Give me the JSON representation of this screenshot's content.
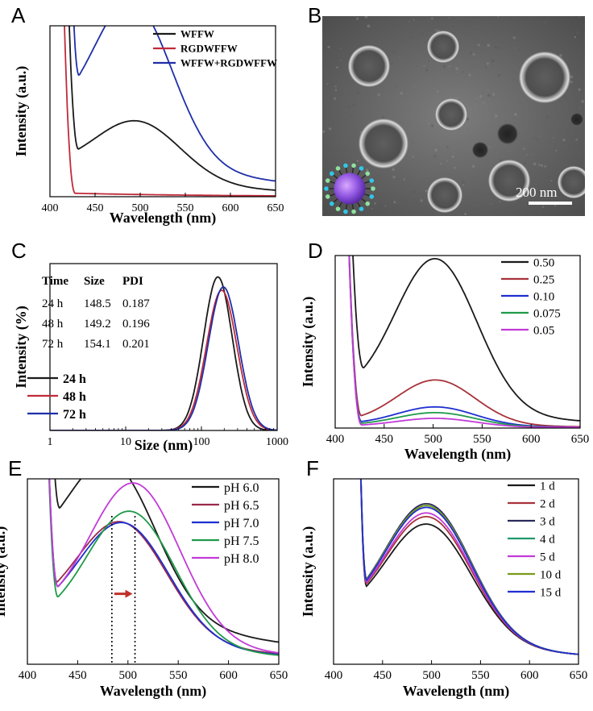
{
  "panel_labels": {
    "A": "A",
    "B": "B",
    "C": "C",
    "D": "D",
    "E": "E",
    "F": "F"
  },
  "sem": {
    "scale_bar_label": "200 nm"
  },
  "dls_table": {
    "headers": [
      "Time",
      "Size",
      "PDI"
    ],
    "rows": [
      [
        "24 h",
        "148.5",
        "0.187"
      ],
      [
        "48 h",
        "149.2",
        "0.196"
      ],
      [
        "72 h",
        "154.1",
        "0.201"
      ]
    ]
  },
  "chart_data": [
    {
      "id": "A",
      "type": "line",
      "ylabel": "Intensity (a.u.)",
      "xlabel": "Wavelength (nm)",
      "xlim": [
        400,
        650
      ],
      "xticks": [
        400,
        450,
        500,
        550,
        600,
        650
      ],
      "ylim": [
        0,
        1
      ],
      "yticks": false,
      "legend": "top-right",
      "series": [
        {
          "name": "WFFW",
          "color": "#1a1a1a",
          "baseline": 0.14,
          "peak_x": 497,
          "peak_y": 0.35,
          "sigma": 48,
          "dip_x": 432,
          "onset_x": 418
        },
        {
          "name": "RGDWFFW",
          "color": "#c02a3a",
          "baseline": 0.02,
          "peak_x": 500,
          "peak_y": 0.0,
          "sigma": 40,
          "dip_x": 428,
          "onset_x": 414
        },
        {
          "name": "WFFW+RGDWFFW",
          "color": "#1f2fa8",
          "baseline": 0.35,
          "peak_x": 492,
          "peak_y": 0.9,
          "sigma": 44,
          "dip_x": 433,
          "onset_x": 421
        }
      ]
    },
    {
      "id": "C",
      "type": "line",
      "xscale": "log",
      "ylabel": "Intensity (%)",
      "xlabel": "Size (nm)",
      "xlim": [
        1,
        1000
      ],
      "xticks": [
        1,
        10,
        100,
        1000
      ],
      "ylim": [
        0,
        1
      ],
      "yticks": false,
      "legend": "left",
      "series": [
        {
          "name": "24 h",
          "color": "#1a1a1a",
          "center": 165,
          "peak_y": 0.92,
          "width": 0.19
        },
        {
          "name": "48 h",
          "color": "#c02a3a",
          "center": 185,
          "peak_y": 0.84,
          "width": 0.2
        },
        {
          "name": "72 h",
          "color": "#1f2fa8",
          "center": 195,
          "peak_y": 0.86,
          "width": 0.2
        }
      ]
    },
    {
      "id": "D",
      "type": "line",
      "ylabel": "Intensity  (a.u.)",
      "xlabel": "Wavelength  (nm)",
      "xlim": [
        400,
        650
      ],
      "xticks": [
        400,
        450,
        500,
        550,
        600,
        650
      ],
      "ylim": [
        0,
        1
      ],
      "yticks": false,
      "legend": "top-right",
      "series": [
        {
          "name": "0.50",
          "color": "#1a1a1a",
          "baseline": 0.16,
          "peak_x": 503,
          "peak_y": 0.88,
          "sigma": 42,
          "dip_x": 430,
          "onset_x": 414
        },
        {
          "name": "0.25",
          "color": "#a8323a",
          "baseline": 0.03,
          "peak_x": 503,
          "peak_y": 0.26,
          "sigma": 40,
          "dip_x": 427,
          "onset_x": 412
        },
        {
          "name": "0.10",
          "color": "#1f2fd0",
          "baseline": 0.02,
          "peak_x": 503,
          "peak_y": 0.11,
          "sigma": 40,
          "dip_x": 427,
          "onset_x": 412
        },
        {
          "name": "0.075",
          "color": "#1f9a4a",
          "baseline": 0.015,
          "peak_x": 503,
          "peak_y": 0.08,
          "sigma": 40,
          "dip_x": 427,
          "onset_x": 412
        },
        {
          "name": "0.05",
          "color": "#c23ad8",
          "baseline": 0.01,
          "peak_x": 503,
          "peak_y": 0.05,
          "sigma": 40,
          "dip_x": 427,
          "onset_x": 412
        }
      ]
    },
    {
      "id": "E",
      "type": "line",
      "ylabel": "Intensity  (a.u.)",
      "xlabel": "Wavelength  (nm)",
      "xlim": [
        400,
        650
      ],
      "xticks": [
        400,
        450,
        500,
        550,
        600,
        650
      ],
      "ylim": [
        0,
        1
      ],
      "yticks": false,
      "legend": "top-right",
      "vlines": [
        484,
        507
      ],
      "arrow_color": "#c0302a",
      "series": [
        {
          "name": "pH 6.0",
          "color": "#1a1a1a",
          "baseline": 0.46,
          "peak_x": 484,
          "peak_y": 0.76,
          "sigma": 44,
          "dip_x": 433,
          "onset_x": 420
        },
        {
          "name": "pH 6.5",
          "color": "#9a2a4a",
          "baseline": 0.22,
          "peak_x": 494,
          "peak_y": 0.62,
          "sigma": 45,
          "dip_x": 430,
          "onset_x": 418
        },
        {
          "name": "pH 7.0",
          "color": "#1f2fd0",
          "baseline": 0.2,
          "peak_x": 496,
          "peak_y": 0.63,
          "sigma": 45,
          "dip_x": 431,
          "onset_x": 418
        },
        {
          "name": "pH 7.5",
          "color": "#1f9a4a",
          "baseline": 0.18,
          "peak_x": 503,
          "peak_y": 0.71,
          "sigma": 44,
          "dip_x": 431,
          "onset_x": 418
        },
        {
          "name": "pH 8.0",
          "color": "#c23ad8",
          "baseline": 0.22,
          "peak_x": 507,
          "peak_y": 0.84,
          "sigma": 45,
          "dip_x": 431,
          "onset_x": 418
        }
      ]
    },
    {
      "id": "F",
      "type": "line",
      "ylabel": "Intensity  (a.u.)",
      "xlabel": "Wavelength  (nm)",
      "xlim": [
        400,
        650
      ],
      "xticks": [
        400,
        450,
        500,
        550,
        600,
        650
      ],
      "ylim": [
        0,
        1
      ],
      "yticks": false,
      "legend": "top-right",
      "series": [
        {
          "name": "1 d",
          "color": "#1a1a1a",
          "baseline": 0.2,
          "peak_x": 497,
          "peak_y": 0.62,
          "sigma": 44,
          "dip_x": 434,
          "onset_x": 425
        },
        {
          "name": "2 d",
          "color": "#a8323a",
          "baseline": 0.2,
          "peak_x": 497,
          "peak_y": 0.66,
          "sigma": 44,
          "dip_x": 434,
          "onset_x": 425
        },
        {
          "name": "3 d",
          "color": "#2a2a5a",
          "baseline": 0.2,
          "peak_x": 497,
          "peak_y": 0.73,
          "sigma": 44,
          "dip_x": 434,
          "onset_x": 425
        },
        {
          "name": "4 d",
          "color": "#1f9a6a",
          "baseline": 0.2,
          "peak_x": 497,
          "peak_y": 0.72,
          "sigma": 44,
          "dip_x": 434,
          "onset_x": 425
        },
        {
          "name": "5 d",
          "color": "#c23ad8",
          "baseline": 0.2,
          "peak_x": 497,
          "peak_y": 0.68,
          "sigma": 44,
          "dip_x": 434,
          "onset_x": 425
        },
        {
          "name": "10 d",
          "color": "#7a9a1a",
          "baseline": 0.2,
          "peak_x": 497,
          "peak_y": 0.72,
          "sigma": 44,
          "dip_x": 434,
          "onset_x": 425
        },
        {
          "name": "15 d",
          "color": "#1f2fd0",
          "baseline": 0.2,
          "peak_x": 497,
          "peak_y": 0.71,
          "sigma": 44,
          "dip_x": 434,
          "onset_x": 425
        }
      ]
    }
  ]
}
